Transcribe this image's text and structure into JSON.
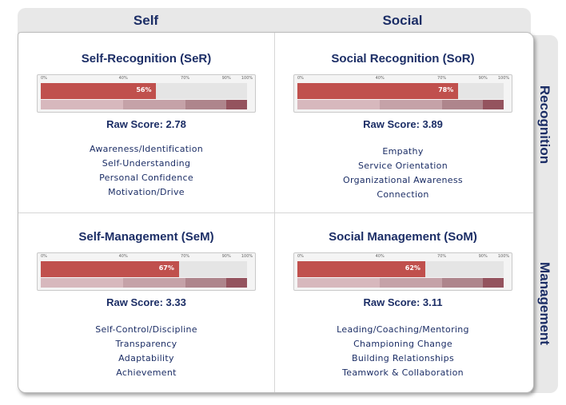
{
  "columns": [
    "Self",
    "Social"
  ],
  "rows": [
    "Recognition",
    "Management"
  ],
  "scale_labels": [
    "0%",
    "40%",
    "70%",
    "90%",
    "100%"
  ],
  "band_colors": [
    "#d7b8bd",
    "#c5a2a8",
    "#ae858c",
    "#94535e"
  ],
  "fill_color": "#c0504d",
  "quadrants": [
    {
      "title": "Self-Recognition (SeR)",
      "percent": 56,
      "percent_label": "56%",
      "raw_score": "Raw Score: 2.78",
      "skills": [
        "Awareness/Identification",
        "Self-Understanding",
        "Personal Confidence",
        "Motivation/Drive"
      ]
    },
    {
      "title": "Social Recognition (SoR)",
      "percent": 78,
      "percent_label": "78%",
      "raw_score": "Raw Score: 3.89",
      "skills": [
        "Empathy",
        "Service Orientation",
        "Organizational Awareness",
        "Connection"
      ]
    },
    {
      "title": "Self-Management (SeM)",
      "percent": 67,
      "percent_label": "67%",
      "raw_score": "Raw Score: 3.33",
      "skills": [
        "Self-Control/Discipline",
        "Transparency",
        "Adaptability",
        "Achievement"
      ]
    },
    {
      "title": "Social Management (SoM)",
      "percent": 62,
      "percent_label": "62%",
      "raw_score": "Raw Score: 3.11",
      "skills": [
        "Leading/Coaching/Mentoring",
        "Championing Change",
        "Building Relationships",
        "Teamwork & Collaboration"
      ]
    }
  ]
}
